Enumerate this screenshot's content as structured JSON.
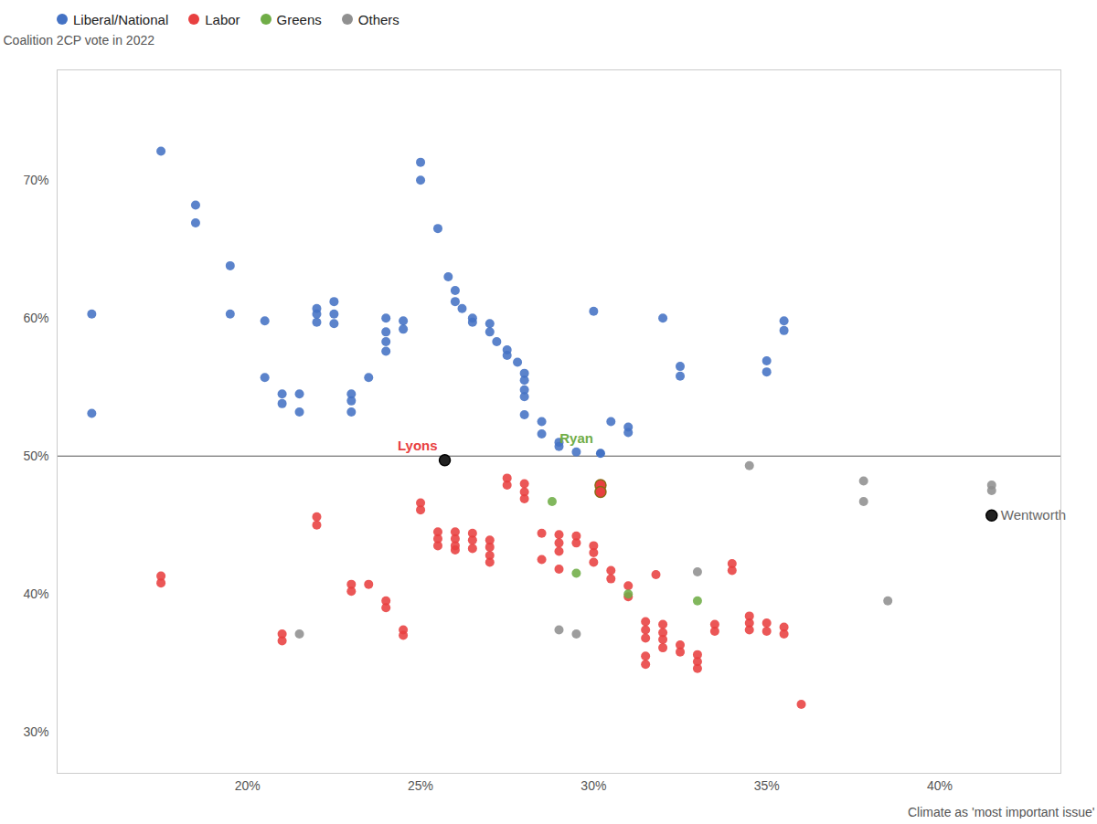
{
  "chart_data": {
    "type": "scatter",
    "ylabel": "Coalition 2CP vote in 2022",
    "xlabel": "Climate as 'most important issue'",
    "xlim": [
      0.145,
      0.435
    ],
    "ylim": [
      27,
      78
    ],
    "xticks": [
      {
        "value": 0.2,
        "label": "20%"
      },
      {
        "value": 0.25,
        "label": "25%"
      },
      {
        "value": 0.3,
        "label": "30%"
      },
      {
        "value": 0.35,
        "label": "35%"
      },
      {
        "value": 0.4,
        "label": "40%"
      }
    ],
    "yticks": [
      {
        "value": 30,
        "label": "30%"
      },
      {
        "value": 40,
        "label": "40%"
      },
      {
        "value": 50,
        "label": "50%"
      },
      {
        "value": 60,
        "label": "60%"
      },
      {
        "value": 70,
        "label": "70%"
      }
    ],
    "grid": false,
    "legend": "top",
    "hlines": [
      {
        "y": 50,
        "color": "#555555"
      }
    ],
    "series": [
      {
        "name": "Liberal/National",
        "color": "#4472C4",
        "values": [
          [
            0.155,
            60.3
          ],
          [
            0.155,
            53.1
          ],
          [
            0.175,
            72.1
          ],
          [
            0.185,
            68.2
          ],
          [
            0.185,
            66.9
          ],
          [
            0.195,
            63.8
          ],
          [
            0.195,
            60.3
          ],
          [
            0.205,
            59.8
          ],
          [
            0.205,
            55.7
          ],
          [
            0.21,
            54.5
          ],
          [
            0.21,
            53.8
          ],
          [
            0.215,
            54.5
          ],
          [
            0.215,
            53.2
          ],
          [
            0.22,
            60.7
          ],
          [
            0.22,
            60.3
          ],
          [
            0.22,
            59.7
          ],
          [
            0.225,
            61.2
          ],
          [
            0.225,
            60.3
          ],
          [
            0.225,
            59.6
          ],
          [
            0.23,
            54.5
          ],
          [
            0.23,
            54.0
          ],
          [
            0.23,
            53.2
          ],
          [
            0.235,
            55.7
          ],
          [
            0.24,
            60.0
          ],
          [
            0.24,
            59.0
          ],
          [
            0.24,
            58.3
          ],
          [
            0.24,
            57.6
          ],
          [
            0.245,
            59.8
          ],
          [
            0.245,
            59.2
          ],
          [
            0.25,
            71.3
          ],
          [
            0.25,
            70.0
          ],
          [
            0.255,
            66.5
          ],
          [
            0.258,
            63.0
          ],
          [
            0.26,
            62.0
          ],
          [
            0.26,
            61.2
          ],
          [
            0.262,
            60.7
          ],
          [
            0.265,
            60.0
          ],
          [
            0.265,
            59.7
          ],
          [
            0.27,
            59.6
          ],
          [
            0.27,
            59.0
          ],
          [
            0.272,
            58.3
          ],
          [
            0.275,
            57.7
          ],
          [
            0.275,
            57.3
          ],
          [
            0.278,
            56.8
          ],
          [
            0.28,
            56.0
          ],
          [
            0.28,
            55.5
          ],
          [
            0.28,
            54.8
          ],
          [
            0.28,
            54.3
          ],
          [
            0.28,
            53.0
          ],
          [
            0.285,
            52.5
          ],
          [
            0.285,
            51.6
          ],
          [
            0.29,
            51.0
          ],
          [
            0.29,
            50.7
          ],
          [
            0.295,
            50.3
          ],
          [
            0.3,
            60.5
          ],
          [
            0.305,
            52.5
          ],
          [
            0.31,
            52.1
          ],
          [
            0.31,
            51.7
          ],
          [
            0.32,
            60.0
          ],
          [
            0.325,
            56.5
          ],
          [
            0.325,
            55.8
          ],
          [
            0.35,
            56.9
          ],
          [
            0.35,
            56.1
          ],
          [
            0.355,
            59.8
          ],
          [
            0.355,
            59.1
          ]
        ]
      },
      {
        "name": "Labor",
        "color": "#E84040",
        "values": [
          [
            0.175,
            41.3
          ],
          [
            0.175,
            40.8
          ],
          [
            0.21,
            37.1
          ],
          [
            0.21,
            36.6
          ],
          [
            0.22,
            45.6
          ],
          [
            0.22,
            45.0
          ],
          [
            0.23,
            40.7
          ],
          [
            0.23,
            40.2
          ],
          [
            0.235,
            40.7
          ],
          [
            0.24,
            39.5
          ],
          [
            0.24,
            39.0
          ],
          [
            0.245,
            37.4
          ],
          [
            0.245,
            37.0
          ],
          [
            0.25,
            46.6
          ],
          [
            0.25,
            46.1
          ],
          [
            0.255,
            44.5
          ],
          [
            0.255,
            44.0
          ],
          [
            0.255,
            43.5
          ],
          [
            0.26,
            44.5
          ],
          [
            0.26,
            44.0
          ],
          [
            0.26,
            43.5
          ],
          [
            0.26,
            43.2
          ],
          [
            0.265,
            44.4
          ],
          [
            0.265,
            43.9
          ],
          [
            0.265,
            43.3
          ],
          [
            0.27,
            43.9
          ],
          [
            0.27,
            43.4
          ],
          [
            0.27,
            42.8
          ],
          [
            0.27,
            42.3
          ],
          [
            0.275,
            48.4
          ],
          [
            0.275,
            47.9
          ],
          [
            0.28,
            48.0
          ],
          [
            0.28,
            47.4
          ],
          [
            0.28,
            46.9
          ],
          [
            0.285,
            44.4
          ],
          [
            0.285,
            42.5
          ],
          [
            0.29,
            44.3
          ],
          [
            0.29,
            43.7
          ],
          [
            0.29,
            43.1
          ],
          [
            0.29,
            41.8
          ],
          [
            0.295,
            44.2
          ],
          [
            0.295,
            43.7
          ],
          [
            0.3,
            43.5
          ],
          [
            0.3,
            43.0
          ],
          [
            0.3,
            42.3
          ],
          [
            0.305,
            41.7
          ],
          [
            0.305,
            41.1
          ],
          [
            0.31,
            40.6
          ],
          [
            0.31,
            39.8
          ],
          [
            0.315,
            38.0
          ],
          [
            0.315,
            37.4
          ],
          [
            0.315,
            36.8
          ],
          [
            0.315,
            35.5
          ],
          [
            0.315,
            34.9
          ],
          [
            0.318,
            41.4
          ],
          [
            0.32,
            37.8
          ],
          [
            0.32,
            37.2
          ],
          [
            0.32,
            36.7
          ],
          [
            0.32,
            36.1
          ],
          [
            0.325,
            36.3
          ],
          [
            0.325,
            35.8
          ],
          [
            0.33,
            35.6
          ],
          [
            0.33,
            35.1
          ],
          [
            0.33,
            34.6
          ],
          [
            0.335,
            37.8
          ],
          [
            0.335,
            37.3
          ],
          [
            0.34,
            42.2
          ],
          [
            0.34,
            41.7
          ],
          [
            0.345,
            38.4
          ],
          [
            0.345,
            37.9
          ],
          [
            0.345,
            37.4
          ],
          [
            0.35,
            37.9
          ],
          [
            0.35,
            37.3
          ],
          [
            0.355,
            37.6
          ],
          [
            0.355,
            37.1
          ],
          [
            0.36,
            32.0
          ]
        ]
      },
      {
        "name": "Greens",
        "color": "#70AD47",
        "values": [
          [
            0.288,
            46.7
          ],
          [
            0.295,
            41.5
          ],
          [
            0.31,
            40.0
          ],
          [
            0.33,
            39.5
          ]
        ]
      },
      {
        "name": "Others",
        "color": "#909090",
        "values": [
          [
            0.215,
            37.1
          ],
          [
            0.29,
            37.4
          ],
          [
            0.295,
            37.1
          ],
          [
            0.33,
            41.6
          ],
          [
            0.345,
            49.3
          ],
          [
            0.378,
            48.2
          ],
          [
            0.378,
            46.7
          ],
          [
            0.385,
            39.5
          ],
          [
            0.415,
            47.9
          ],
          [
            0.415,
            47.5
          ]
        ]
      }
    ],
    "annotations": [
      {
        "text": "Lyons",
        "color": "#E84040",
        "points": [
          {
            "x": 0.257,
            "y": 49.7,
            "color": "#222222",
            "edge_color": "black"
          }
        ]
      },
      {
        "text": "Ryan",
        "color": "#70AD47",
        "points": [
          {
            "x": 0.302,
            "y": 50.2,
            "color": "#4472C4"
          },
          {
            "x": 0.302,
            "y": 47.9,
            "color": "#E84040",
            "edge_color": "#8B6914"
          },
          {
            "x": 0.302,
            "y": 47.4,
            "color": "#E84040",
            "edge_color": "#8B6914"
          }
        ]
      },
      {
        "text": "Wentworth",
        "color": "#666666",
        "points": [
          {
            "x": 0.415,
            "y": 45.7,
            "color": "#222222",
            "edge_color": "black"
          }
        ]
      }
    ]
  }
}
